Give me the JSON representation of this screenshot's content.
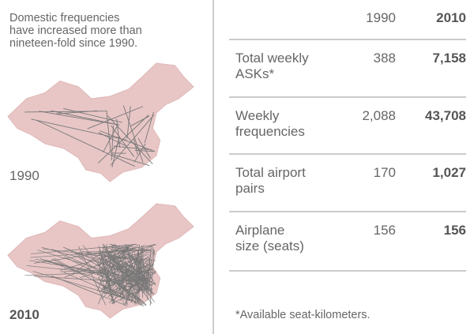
{
  "caption_lines": [
    "Domestic frequencies",
    "have increased more than",
    "nineteen-fold since 1990."
  ],
  "maps": [
    {
      "label": "1990"
    },
    {
      "label": "2010"
    }
  ],
  "table": {
    "columns": [
      "1990",
      "2010"
    ],
    "rows": [
      {
        "label_lines": [
          "Total weekly",
          "ASKs*"
        ],
        "values": [
          "388",
          "7,158"
        ]
      },
      {
        "label_lines": [
          "Weekly",
          "frequencies"
        ],
        "values": [
          "2,088",
          "43,708"
        ]
      },
      {
        "label_lines": [
          "Total airport",
          "pairs"
        ],
        "values": [
          "170",
          "1,027"
        ]
      },
      {
        "label_lines": [
          "Airplane",
          "size (seats)"
        ],
        "values": [
          "156",
          "156"
        ]
      }
    ]
  },
  "footnote": "*Available seat-kilometers."
}
